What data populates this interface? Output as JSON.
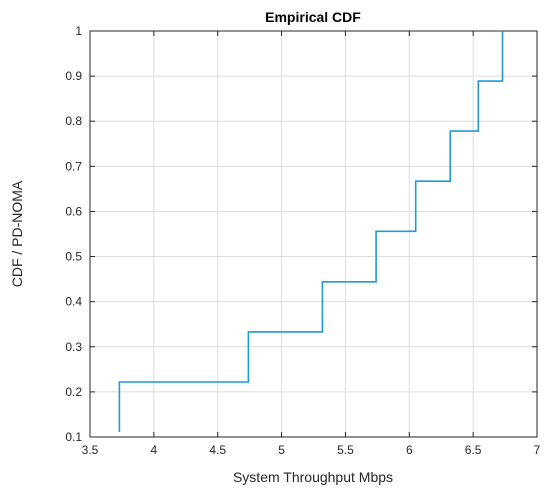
{
  "chart_data": {
    "type": "line",
    "step": true,
    "title": "Empirical CDF",
    "xlabel": "System Throughput Mbps",
    "ylabel": "CDF / PD-NOMA",
    "xlim": [
      3.5,
      7
    ],
    "ylim": [
      0.1,
      1
    ],
    "xticks": [
      3.5,
      4,
      4.5,
      5,
      5.5,
      6,
      6.5,
      7
    ],
    "xtick_labels": [
      "3.5",
      "4",
      "4.5",
      "5",
      "5.5",
      "6",
      "6.5",
      "7"
    ],
    "yticks": [
      0.1,
      0.2,
      0.3,
      0.4,
      0.5,
      0.6,
      0.7,
      0.8,
      0.9,
      1
    ],
    "ytick_labels": [
      "0.1",
      "0.2",
      "0.3",
      "0.4",
      "0.5",
      "0.6",
      "0.7",
      "0.8",
      "0.9",
      "1"
    ],
    "grid": true,
    "color": "#1f9bd7",
    "series": [
      {
        "x": [
          3.73,
          3.73,
          4.74,
          4.74,
          5.32,
          5.32,
          5.74,
          5.74,
          6.05,
          6.05,
          6.32,
          6.32,
          6.54,
          6.54,
          6.73,
          6.73
        ],
        "y": [
          0.111,
          0.222,
          0.222,
          0.333,
          0.333,
          0.444,
          0.444,
          0.556,
          0.556,
          0.667,
          0.667,
          0.778,
          0.778,
          0.889,
          0.889,
          1.0
        ]
      }
    ]
  }
}
